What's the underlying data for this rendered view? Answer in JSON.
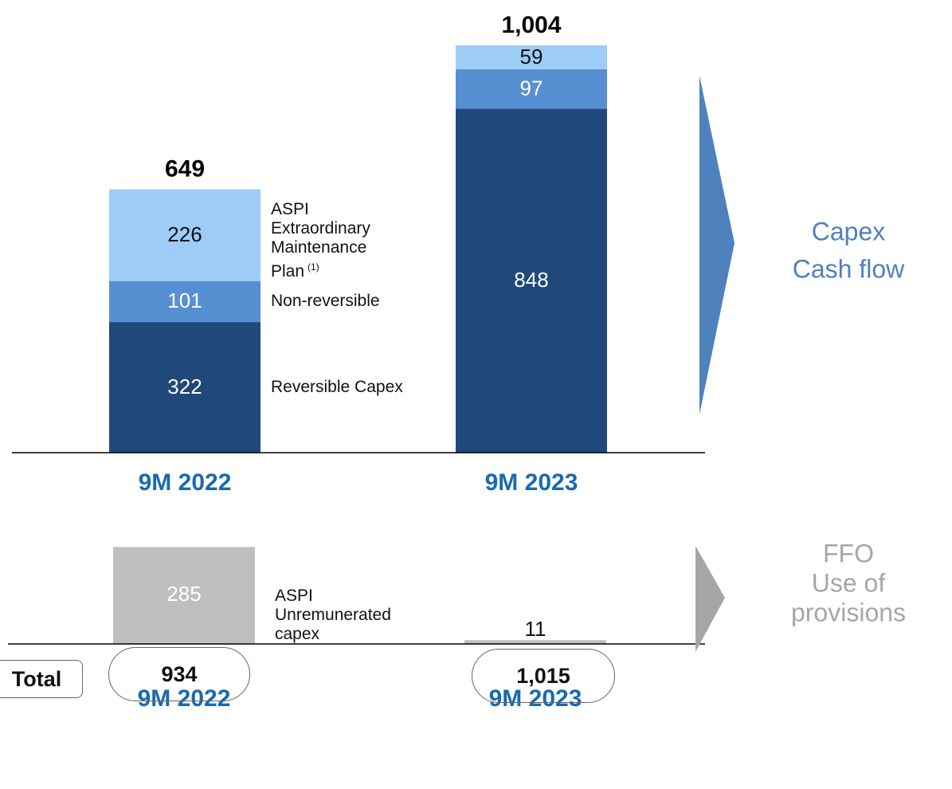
{
  "chart_data": [
    {
      "type": "stacked_bar",
      "categories": [
        "9M 2022",
        "9M 2023"
      ],
      "series": [
        {
          "name": "Reversible Capex",
          "color": "#21487a",
          "label_color": "#ffffff",
          "values": [
            322,
            848
          ]
        },
        {
          "name": "Non-reversible",
          "color": "#578fd3",
          "label_color": "#ffffff",
          "values": [
            101,
            97
          ]
        },
        {
          "name": "ASPI Extraordinary Maintenance Plan",
          "name_note": "(1)",
          "color": "#9dccf7",
          "label_color": "#111111",
          "values": [
            226,
            59
          ]
        }
      ],
      "totals": [
        649,
        1004
      ],
      "total_labels": [
        "649",
        "1,004"
      ],
      "ylim": [
        0,
        1100
      ],
      "side_label": [
        "Capex",
        "Cash flow"
      ],
      "side_color": "#4f81bd"
    },
    {
      "type": "bar",
      "categories": [
        "9M 2022",
        "9M 2023"
      ],
      "series": [
        {
          "name": "ASPI Unremunerated capex",
          "color": "#bfbfbf",
          "values": [
            285,
            11
          ]
        }
      ],
      "ylim": [
        0,
        300
      ],
      "side_label": [
        "FFO",
        "Use of",
        "provisions"
      ],
      "side_color": "#a6a6a6"
    }
  ],
  "totals_row": {
    "label": "Total",
    "values": [
      "934",
      "1,015"
    ]
  }
}
